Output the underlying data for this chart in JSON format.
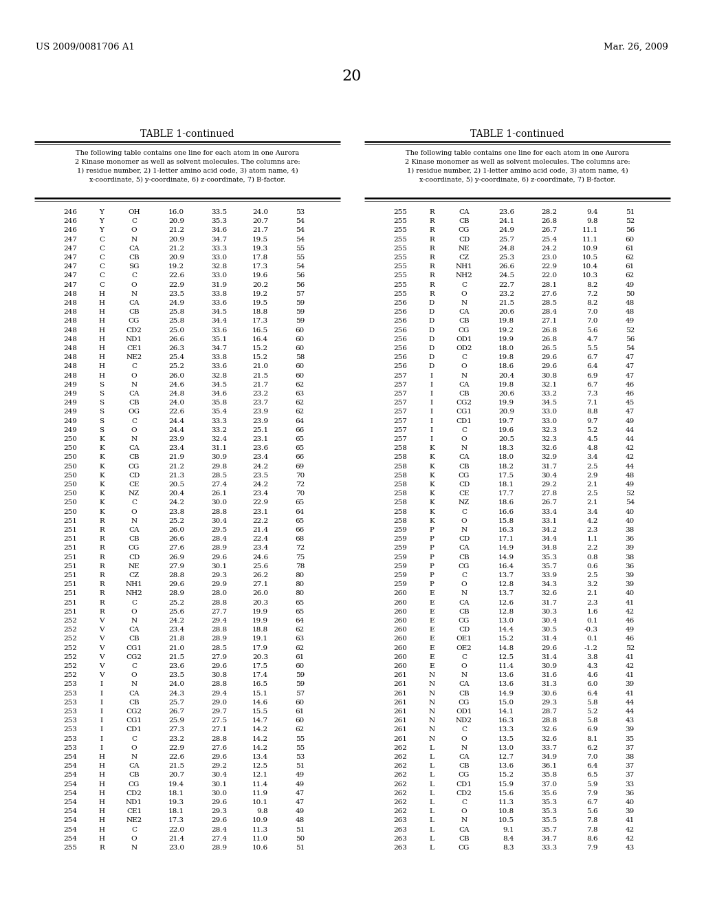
{
  "header_left": "US 2009/0081706 A1",
  "header_right": "Mar. 26, 2009",
  "page_number": "20",
  "table_title": "TABLE 1-continued",
  "table_description": "The following table contains one line for each atom in one Aurora\n2 Kinase monomer as well as solvent molecules. The columns are:\n1) residue number, 2) 1-letter amino acid code, 3) atom name, 4)\nx-coordinate, 5) y-coordinate, 6) z-coordinate, 7) B-factor.",
  "left_data": [
    [
      246,
      "Y",
      "OH",
      "16.0",
      "33.5",
      "24.0",
      "53"
    ],
    [
      246,
      "Y",
      "C",
      "20.9",
      "35.3",
      "20.7",
      "54"
    ],
    [
      246,
      "Y",
      "O",
      "21.2",
      "34.6",
      "21.7",
      "54"
    ],
    [
      247,
      "C",
      "N",
      "20.9",
      "34.7",
      "19.5",
      "54"
    ],
    [
      247,
      "C",
      "CA",
      "21.2",
      "33.3",
      "19.3",
      "55"
    ],
    [
      247,
      "C",
      "CB",
      "20.9",
      "33.0",
      "17.8",
      "55"
    ],
    [
      247,
      "C",
      "SG",
      "19.2",
      "32.8",
      "17.3",
      "54"
    ],
    [
      247,
      "C",
      "C",
      "22.6",
      "33.0",
      "19.6",
      "56"
    ],
    [
      247,
      "C",
      "O",
      "22.9",
      "31.9",
      "20.2",
      "56"
    ],
    [
      248,
      "H",
      "N",
      "23.5",
      "33.8",
      "19.2",
      "57"
    ],
    [
      248,
      "H",
      "CA",
      "24.9",
      "33.6",
      "19.5",
      "59"
    ],
    [
      248,
      "H",
      "CB",
      "25.8",
      "34.5",
      "18.8",
      "59"
    ],
    [
      248,
      "H",
      "CG",
      "25.8",
      "34.4",
      "17.3",
      "59"
    ],
    [
      248,
      "H",
      "CD2",
      "25.0",
      "33.6",
      "16.5",
      "60"
    ],
    [
      248,
      "H",
      "ND1",
      "26.6",
      "35.1",
      "16.4",
      "60"
    ],
    [
      248,
      "H",
      "CE1",
      "26.3",
      "34.7",
      "15.2",
      "60"
    ],
    [
      248,
      "H",
      "NE2",
      "25.4",
      "33.8",
      "15.2",
      "58"
    ],
    [
      248,
      "H",
      "C",
      "25.2",
      "33.6",
      "21.0",
      "60"
    ],
    [
      248,
      "H",
      "O",
      "26.0",
      "32.8",
      "21.5",
      "60"
    ],
    [
      249,
      "S",
      "N",
      "24.6",
      "34.5",
      "21.7",
      "62"
    ],
    [
      249,
      "S",
      "CA",
      "24.8",
      "34.6",
      "23.2",
      "63"
    ],
    [
      249,
      "S",
      "CB",
      "24.0",
      "35.8",
      "23.7",
      "62"
    ],
    [
      249,
      "S",
      "OG",
      "22.6",
      "35.4",
      "23.9",
      "62"
    ],
    [
      249,
      "S",
      "C",
      "24.4",
      "33.3",
      "23.9",
      "64"
    ],
    [
      249,
      "S",
      "O",
      "24.4",
      "33.2",
      "25.1",
      "66"
    ],
    [
      250,
      "K",
      "N",
      "23.9",
      "32.4",
      "23.1",
      "65"
    ],
    [
      250,
      "K",
      "CA",
      "23.4",
      "31.1",
      "23.6",
      "65"
    ],
    [
      250,
      "K",
      "CB",
      "21.9",
      "30.9",
      "23.4",
      "66"
    ],
    [
      250,
      "K",
      "CG",
      "21.2",
      "29.8",
      "24.2",
      "69"
    ],
    [
      250,
      "K",
      "CD",
      "21.3",
      "28.5",
      "23.5",
      "70"
    ],
    [
      250,
      "K",
      "CE",
      "20.5",
      "27.4",
      "24.2",
      "72"
    ],
    [
      250,
      "K",
      "NZ",
      "20.4",
      "26.1",
      "23.4",
      "70"
    ],
    [
      250,
      "K",
      "C",
      "24.2",
      "30.0",
      "22.9",
      "65"
    ],
    [
      250,
      "K",
      "O",
      "23.8",
      "28.8",
      "23.1",
      "64"
    ],
    [
      251,
      "R",
      "N",
      "25.2",
      "30.4",
      "22.2",
      "65"
    ],
    [
      251,
      "R",
      "CA",
      "26.0",
      "29.5",
      "21.4",
      "66"
    ],
    [
      251,
      "R",
      "CB",
      "26.6",
      "28.4",
      "22.4",
      "68"
    ],
    [
      251,
      "R",
      "CG",
      "27.6",
      "28.9",
      "23.4",
      "72"
    ],
    [
      251,
      "R",
      "CD",
      "26.9",
      "29.6",
      "24.6",
      "75"
    ],
    [
      251,
      "R",
      "NE",
      "27.9",
      "30.1",
      "25.6",
      "78"
    ],
    [
      251,
      "R",
      "CZ",
      "28.8",
      "29.3",
      "26.2",
      "80"
    ],
    [
      251,
      "R",
      "NH1",
      "29.6",
      "29.9",
      "27.1",
      "80"
    ],
    [
      251,
      "R",
      "NH2",
      "28.9",
      "28.0",
      "26.0",
      "80"
    ],
    [
      251,
      "R",
      "C",
      "25.2",
      "28.8",
      "20.3",
      "65"
    ],
    [
      251,
      "R",
      "O",
      "25.6",
      "27.7",
      "19.9",
      "65"
    ],
    [
      252,
      "V",
      "N",
      "24.2",
      "29.4",
      "19.9",
      "64"
    ],
    [
      252,
      "V",
      "CA",
      "23.4",
      "28.8",
      "18.8",
      "62"
    ],
    [
      252,
      "V",
      "CB",
      "21.8",
      "28.9",
      "19.1",
      "63"
    ],
    [
      252,
      "V",
      "CG1",
      "21.0",
      "28.5",
      "17.9",
      "62"
    ],
    [
      252,
      "V",
      "CG2",
      "21.5",
      "27.9",
      "20.3",
      "61"
    ],
    [
      252,
      "V",
      "C",
      "23.6",
      "29.6",
      "17.5",
      "60"
    ],
    [
      252,
      "V",
      "O",
      "23.5",
      "30.8",
      "17.4",
      "59"
    ],
    [
      253,
      "I",
      "N",
      "24.0",
      "28.8",
      "16.5",
      "59"
    ],
    [
      253,
      "I",
      "CA",
      "24.3",
      "29.4",
      "15.1",
      "57"
    ],
    [
      253,
      "I",
      "CB",
      "25.7",
      "29.0",
      "14.6",
      "60"
    ],
    [
      253,
      "I",
      "CG2",
      "26.7",
      "29.7",
      "15.5",
      "61"
    ],
    [
      253,
      "I",
      "CG1",
      "25.9",
      "27.5",
      "14.7",
      "60"
    ],
    [
      253,
      "I",
      "CD1",
      "27.3",
      "27.1",
      "14.2",
      "62"
    ],
    [
      253,
      "I",
      "C",
      "23.2",
      "28.8",
      "14.2",
      "55"
    ],
    [
      253,
      "I",
      "O",
      "22.9",
      "27.6",
      "14.2",
      "55"
    ],
    [
      254,
      "H",
      "N",
      "22.6",
      "29.6",
      "13.4",
      "53"
    ],
    [
      254,
      "H",
      "CA",
      "21.5",
      "29.2",
      "12.5",
      "51"
    ],
    [
      254,
      "H",
      "CB",
      "20.7",
      "30.4",
      "12.1",
      "49"
    ],
    [
      254,
      "H",
      "CG",
      "19.4",
      "30.1",
      "11.4",
      "49"
    ],
    [
      254,
      "H",
      "CD2",
      "18.1",
      "30.0",
      "11.9",
      "47"
    ],
    [
      254,
      "H",
      "ND1",
      "19.3",
      "29.6",
      "10.1",
      "47"
    ],
    [
      254,
      "H",
      "CE1",
      "18.1",
      "29.3",
      "9.8",
      "49"
    ],
    [
      254,
      "H",
      "NE2",
      "17.3",
      "29.6",
      "10.9",
      "48"
    ],
    [
      254,
      "H",
      "C",
      "22.0",
      "28.4",
      "11.3",
      "51"
    ],
    [
      254,
      "H",
      "O",
      "21.4",
      "27.4",
      "11.0",
      "50"
    ],
    [
      255,
      "R",
      "N",
      "23.0",
      "28.9",
      "10.6",
      "51"
    ]
  ],
  "right_data": [
    [
      255,
      "R",
      "CA",
      "23.6",
      "28.2",
      "9.4",
      "51"
    ],
    [
      255,
      "R",
      "CB",
      "24.1",
      "26.8",
      "9.8",
      "52"
    ],
    [
      255,
      "R",
      "CG",
      "24.9",
      "26.7",
      "11.1",
      "56"
    ],
    [
      255,
      "R",
      "CD",
      "25.7",
      "25.4",
      "11.1",
      "60"
    ],
    [
      255,
      "R",
      "NE",
      "24.8",
      "24.2",
      "10.9",
      "61"
    ],
    [
      255,
      "R",
      "CZ",
      "25.3",
      "23.0",
      "10.5",
      "62"
    ],
    [
      255,
      "R",
      "NH1",
      "26.6",
      "22.9",
      "10.4",
      "61"
    ],
    [
      255,
      "R",
      "NH2",
      "24.5",
      "22.0",
      "10.3",
      "62"
    ],
    [
      255,
      "R",
      "C",
      "22.7",
      "28.1",
      "8.2",
      "49"
    ],
    [
      255,
      "R",
      "O",
      "23.2",
      "27.6",
      "7.2",
      "50"
    ],
    [
      256,
      "D",
      "N",
      "21.5",
      "28.5",
      "8.2",
      "48"
    ],
    [
      256,
      "D",
      "CA",
      "20.6",
      "28.4",
      "7.0",
      "48"
    ],
    [
      256,
      "D",
      "CB",
      "19.8",
      "27.1",
      "7.0",
      "49"
    ],
    [
      256,
      "D",
      "CG",
      "19.2",
      "26.8",
      "5.6",
      "52"
    ],
    [
      256,
      "D",
      "OD1",
      "19.9",
      "26.8",
      "4.7",
      "56"
    ],
    [
      256,
      "D",
      "OD2",
      "18.0",
      "26.5",
      "5.5",
      "54"
    ],
    [
      256,
      "D",
      "C",
      "19.8",
      "29.6",
      "6.7",
      "47"
    ],
    [
      256,
      "D",
      "O",
      "18.6",
      "29.6",
      "6.4",
      "47"
    ],
    [
      257,
      "I",
      "N",
      "20.4",
      "30.8",
      "6.9",
      "47"
    ],
    [
      257,
      "I",
      "CA",
      "19.8",
      "32.1",
      "6.7",
      "46"
    ],
    [
      257,
      "I",
      "CB",
      "20.6",
      "33.2",
      "7.3",
      "46"
    ],
    [
      257,
      "I",
      "CG2",
      "19.9",
      "34.5",
      "7.1",
      "45"
    ],
    [
      257,
      "I",
      "CG1",
      "20.9",
      "33.0",
      "8.8",
      "47"
    ],
    [
      257,
      "I",
      "CD1",
      "19.7",
      "33.0",
      "9.7",
      "49"
    ],
    [
      257,
      "I",
      "C",
      "19.6",
      "32.3",
      "5.2",
      "44"
    ],
    [
      257,
      "I",
      "O",
      "20.5",
      "32.3",
      "4.5",
      "44"
    ],
    [
      258,
      "K",
      "N",
      "18.3",
      "32.6",
      "4.8",
      "42"
    ],
    [
      258,
      "K",
      "CA",
      "18.0",
      "32.9",
      "3.4",
      "42"
    ],
    [
      258,
      "K",
      "CB",
      "18.2",
      "31.7",
      "2.5",
      "44"
    ],
    [
      258,
      "K",
      "CG",
      "17.5",
      "30.4",
      "2.9",
      "48"
    ],
    [
      258,
      "K",
      "CD",
      "18.1",
      "29.2",
      "2.1",
      "49"
    ],
    [
      258,
      "K",
      "CE",
      "17.7",
      "27.8",
      "2.5",
      "52"
    ],
    [
      258,
      "K",
      "NZ",
      "18.6",
      "26.7",
      "2.1",
      "54"
    ],
    [
      258,
      "K",
      "C",
      "16.6",
      "33.4",
      "3.4",
      "40"
    ],
    [
      258,
      "K",
      "O",
      "15.8",
      "33.1",
      "4.2",
      "40"
    ],
    [
      259,
      "P",
      "N",
      "16.3",
      "34.2",
      "2.3",
      "38"
    ],
    [
      259,
      "P",
      "CD",
      "17.1",
      "34.4",
      "1.1",
      "36"
    ],
    [
      259,
      "P",
      "CA",
      "14.9",
      "34.8",
      "2.2",
      "39"
    ],
    [
      259,
      "P",
      "CB",
      "14.9",
      "35.3",
      "0.8",
      "38"
    ],
    [
      259,
      "P",
      "CG",
      "16.4",
      "35.7",
      "0.6",
      "36"
    ],
    [
      259,
      "P",
      "C",
      "13.7",
      "33.9",
      "2.5",
      "39"
    ],
    [
      259,
      "P",
      "O",
      "12.8",
      "34.3",
      "3.2",
      "39"
    ],
    [
      260,
      "E",
      "N",
      "13.7",
      "32.6",
      "2.1",
      "40"
    ],
    [
      260,
      "E",
      "CA",
      "12.6",
      "31.7",
      "2.3",
      "41"
    ],
    [
      260,
      "E",
      "CB",
      "12.8",
      "30.3",
      "1.6",
      "42"
    ],
    [
      260,
      "E",
      "CG",
      "13.0",
      "30.4",
      "0.1",
      "46"
    ],
    [
      260,
      "E",
      "CD",
      "14.4",
      "30.5",
      "-0.3",
      "49"
    ],
    [
      260,
      "E",
      "OE1",
      "15.2",
      "31.4",
      "0.1",
      "46"
    ],
    [
      260,
      "E",
      "OE2",
      "14.8",
      "29.6",
      "-1.2",
      "52"
    ],
    [
      260,
      "E",
      "C",
      "12.5",
      "31.4",
      "3.8",
      "41"
    ],
    [
      260,
      "E",
      "O",
      "11.4",
      "30.9",
      "4.3",
      "42"
    ],
    [
      261,
      "N",
      "N",
      "13.6",
      "31.6",
      "4.6",
      "41"
    ],
    [
      261,
      "N",
      "CA",
      "13.6",
      "31.3",
      "6.0",
      "39"
    ],
    [
      261,
      "N",
      "CB",
      "14.9",
      "30.6",
      "6.4",
      "41"
    ],
    [
      261,
      "N",
      "CG",
      "15.0",
      "29.3",
      "5.8",
      "44"
    ],
    [
      261,
      "N",
      "OD1",
      "14.1",
      "28.7",
      "5.2",
      "44"
    ],
    [
      261,
      "N",
      "ND2",
      "16.3",
      "28.8",
      "5.8",
      "43"
    ],
    [
      261,
      "N",
      "C",
      "13.3",
      "32.6",
      "6.9",
      "39"
    ],
    [
      261,
      "N",
      "O",
      "13.5",
      "32.6",
      "8.1",
      "35"
    ],
    [
      262,
      "L",
      "N",
      "13.0",
      "33.7",
      "6.2",
      "37"
    ],
    [
      262,
      "L",
      "CA",
      "12.7",
      "34.9",
      "7.0",
      "38"
    ],
    [
      262,
      "L",
      "CB",
      "13.6",
      "36.1",
      "6.4",
      "37"
    ],
    [
      262,
      "L",
      "CG",
      "15.2",
      "35.8",
      "6.5",
      "37"
    ],
    [
      262,
      "L",
      "CD1",
      "15.9",
      "37.0",
      "5.9",
      "33"
    ],
    [
      262,
      "L",
      "CD2",
      "15.6",
      "35.6",
      "7.9",
      "36"
    ],
    [
      262,
      "L",
      "C",
      "11.3",
      "35.3",
      "6.7",
      "40"
    ],
    [
      262,
      "L",
      "O",
      "10.8",
      "35.3",
      "5.6",
      "39"
    ],
    [
      263,
      "L",
      "N",
      "10.5",
      "35.5",
      "7.8",
      "41"
    ],
    [
      263,
      "L",
      "CA",
      "9.1",
      "35.7",
      "7.8",
      "42"
    ],
    [
      263,
      "L",
      "CB",
      "8.4",
      "34.7",
      "8.6",
      "42"
    ],
    [
      263,
      "L",
      "CG",
      "8.3",
      "33.3",
      "7.9",
      "43"
    ]
  ],
  "bg_color": "#ffffff",
  "text_color": "#000000",
  "header_fontsize": 9.5,
  "page_num_fontsize": 16,
  "title_fontsize": 10,
  "desc_fontsize": 7.0,
  "data_fontsize": 7.5,
  "line_thick": 1.8,
  "line_thin": 0.7
}
